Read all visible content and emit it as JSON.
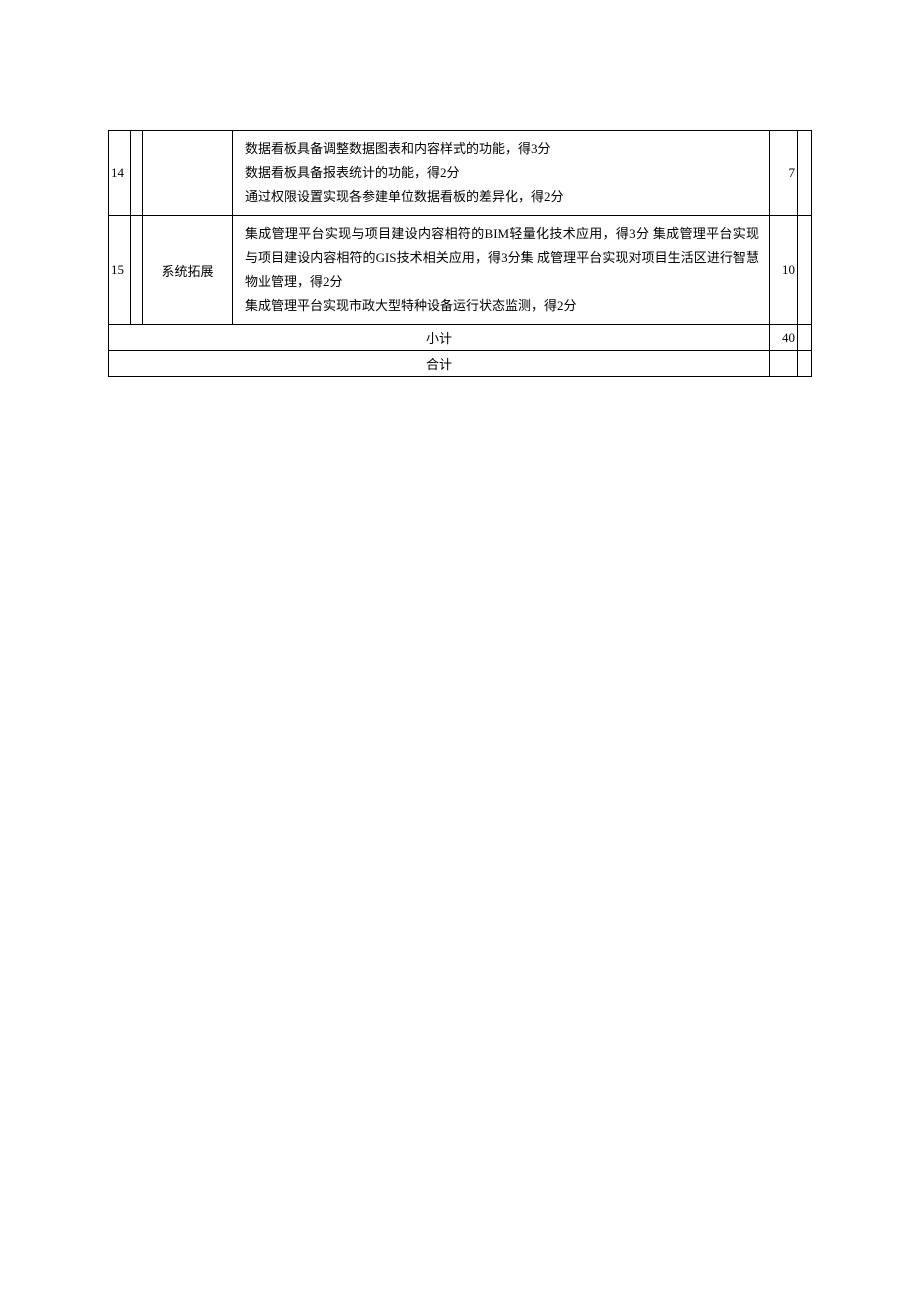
{
  "table": {
    "rows": [
      {
        "num": "14",
        "category": "",
        "desc_lines": [
          "数据看板具备调整数据图表和内容样式的功能，得3分",
          "数据看板具备报表统计的功能，得2分",
          "通过权限设置实现各参建单位数据看板的差异化，得2分"
        ],
        "score": "7"
      },
      {
        "num": "15",
        "category": "系统拓展",
        "desc_lines": [
          "集成管理平台实现与项目建设内容相符的BIM轻量化技术应用，得3分  集成管理平台实现与项目建设内容相符的GIS技术相关应用，得3分集  成管理平台实现对项目生活区进行智慧物业管理，得2分",
          "集成管理平台实现市政大型特种设备运行状态监测，得2分"
        ],
        "score": "10"
      }
    ],
    "subtotal_label": "小计",
    "subtotal_value": "40",
    "total_label": "合计"
  }
}
